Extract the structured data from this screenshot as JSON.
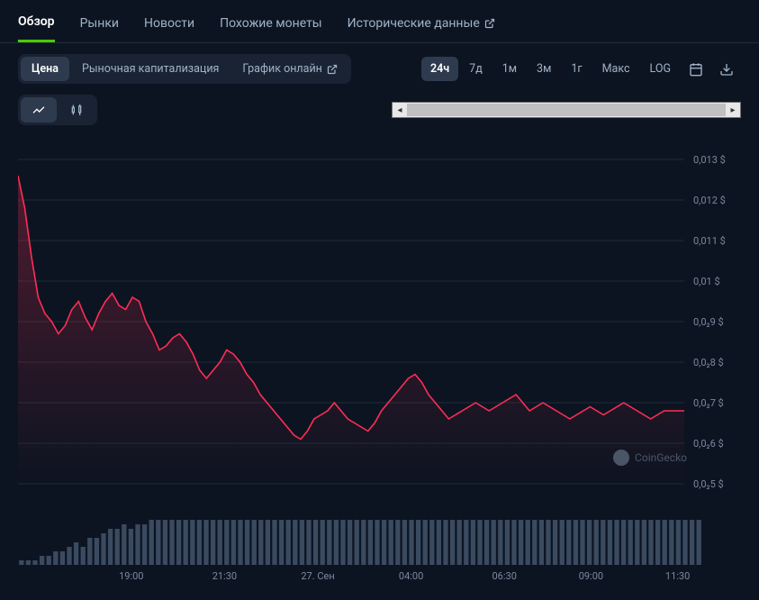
{
  "tabs": [
    {
      "label": "Обзор",
      "active": true
    },
    {
      "label": "Рынки",
      "active": false
    },
    {
      "label": "Новости",
      "active": false
    },
    {
      "label": "Похожие монеты",
      "active": false
    },
    {
      "label": "Исторические данные",
      "active": false,
      "external": true
    }
  ],
  "viewModes": [
    {
      "label": "Цена",
      "active": true
    },
    {
      "label": "Рыночная капитализация",
      "active": false
    },
    {
      "label": "График онлайн",
      "active": false,
      "external": true
    }
  ],
  "ranges": [
    {
      "label": "24ч",
      "active": true
    },
    {
      "label": "7д",
      "active": false
    },
    {
      "label": "1м",
      "active": false
    },
    {
      "label": "3м",
      "active": false
    },
    {
      "label": "1г",
      "active": false
    },
    {
      "label": "Макс",
      "active": false
    },
    {
      "label": "LOG",
      "active": false
    }
  ],
  "chartTypes": [
    {
      "name": "line-chart-icon",
      "active": true
    },
    {
      "name": "candlestick-icon",
      "active": false
    }
  ],
  "priceChart": {
    "type": "area",
    "line_color": "#ff2d55",
    "fill_top_color": "rgba(255,45,85,0.28)",
    "fill_bottom_color": "rgba(255,45,85,0.0)",
    "line_width": 1.6,
    "background_color": "#0d1421",
    "grid_color": "#1f2a3a",
    "y_ticks": [
      "0,013 $",
      "0,012 $",
      "0,011 $",
      "0,01 $",
      "0,0₂9 $",
      "0,0₂8 $",
      "0,0₂7 $",
      "0,0₂6 $",
      "0,0₂5 $"
    ],
    "y_tick_values": [
      0.013,
      0.012,
      0.011,
      0.01,
      0.009,
      0.008,
      0.007,
      0.006,
      0.005
    ],
    "ylim": [
      0.005,
      0.013
    ],
    "x_ticks": [
      "19:00",
      "21:30",
      "27. Сен",
      "04:00",
      "06:30",
      "09:00",
      "11:30"
    ],
    "x_tick_positions": [
      0.17,
      0.31,
      0.45,
      0.59,
      0.73,
      0.86,
      0.99
    ],
    "series": [
      0.0126,
      0.0118,
      0.0106,
      0.0096,
      0.0092,
      0.009,
      0.0087,
      0.0089,
      0.0093,
      0.0095,
      0.0091,
      0.0088,
      0.0092,
      0.0095,
      0.0097,
      0.0094,
      0.0093,
      0.0096,
      0.0095,
      0.009,
      0.0087,
      0.0083,
      0.0084,
      0.0086,
      0.0087,
      0.0085,
      0.0082,
      0.0078,
      0.0076,
      0.0078,
      0.008,
      0.0083,
      0.0082,
      0.008,
      0.0077,
      0.0075,
      0.0072,
      0.007,
      0.0068,
      0.0066,
      0.0064,
      0.0062,
      0.0061,
      0.0063,
      0.0066,
      0.0067,
      0.0068,
      0.007,
      0.0068,
      0.0066,
      0.0065,
      0.0064,
      0.0063,
      0.0065,
      0.0068,
      0.007,
      0.0072,
      0.0074,
      0.0076,
      0.0077,
      0.0075,
      0.0072,
      0.007,
      0.0068,
      0.0066,
      0.0067,
      0.0068,
      0.0069,
      0.007,
      0.0069,
      0.0068,
      0.0069,
      0.007,
      0.0071,
      0.0072,
      0.007,
      0.0068,
      0.0069,
      0.007,
      0.0069,
      0.0068,
      0.0067,
      0.0066,
      0.0067,
      0.0068,
      0.0069,
      0.0068,
      0.0067,
      0.0068,
      0.0069,
      0.007,
      0.0069,
      0.0068,
      0.0067,
      0.0066,
      0.0067,
      0.0068,
      0.0068,
      0.0068,
      0.0068
    ]
  },
  "volumeChart": {
    "type": "bar",
    "bar_color": "#3a4a60",
    "bar_values": [
      1,
      1,
      1,
      2,
      2,
      3,
      3,
      4,
      5,
      4,
      6,
      6,
      7,
      8,
      8,
      9,
      8,
      9,
      9,
      10,
      10,
      10,
      10,
      10,
      10,
      10,
      10,
      10,
      10,
      10,
      10,
      10,
      10,
      10,
      10,
      10,
      10,
      10,
      10,
      10,
      10,
      10,
      10,
      10,
      10,
      10,
      10,
      10,
      10,
      10,
      10,
      10,
      10,
      10,
      10,
      10,
      10,
      10,
      10,
      10,
      10,
      10,
      10,
      10,
      10,
      10,
      10,
      10,
      10,
      10,
      10,
      10,
      10,
      10,
      10,
      10,
      10,
      10,
      10,
      10,
      10,
      10,
      10,
      10,
      10,
      10,
      10,
      10,
      10,
      10,
      10,
      10,
      10,
      10,
      10,
      10,
      10,
      10,
      10,
      10
    ],
    "ylim": [
      0,
      12
    ]
  },
  "watermark": "CoinGecko"
}
